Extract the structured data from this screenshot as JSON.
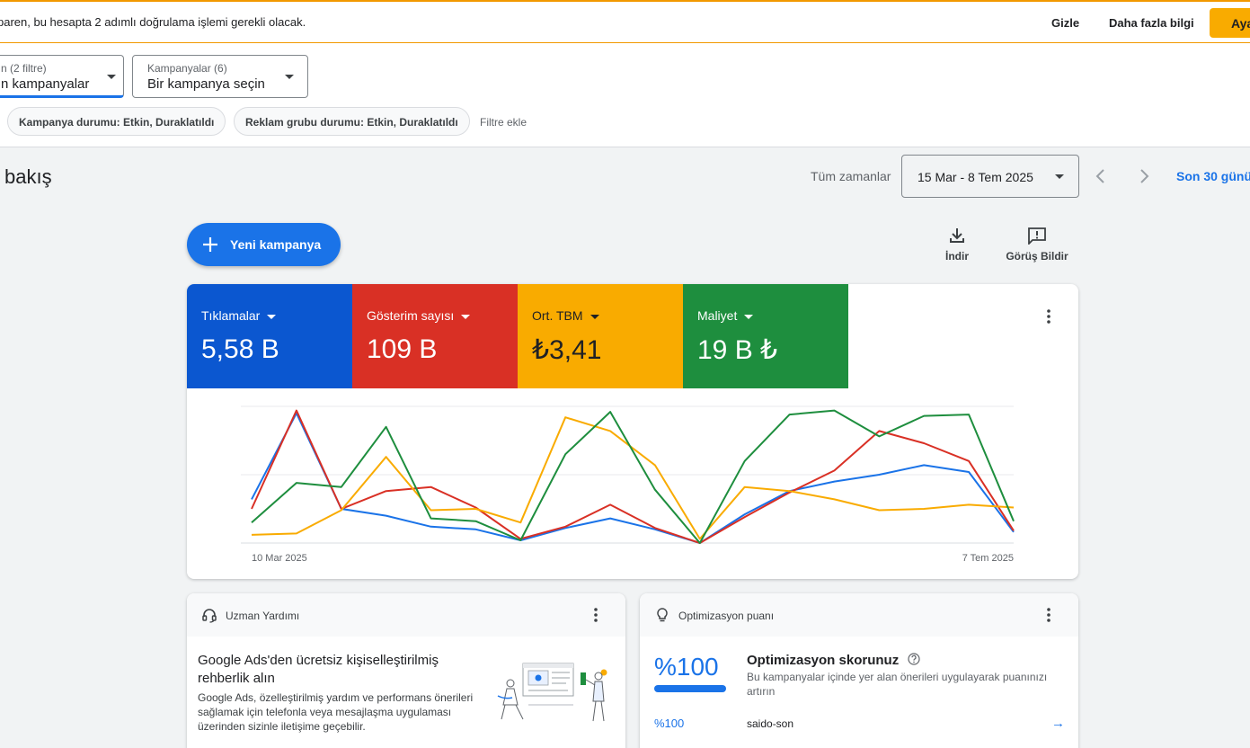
{
  "banner": {
    "text": "paren, bu hesapta 2 adımlı doğrulama işlemi gerekli olacak.",
    "hide_label": "Gizle",
    "more_info_label": "Daha fazla bilgi",
    "cta_label": "Aya"
  },
  "filters": {
    "view_selector": {
      "label": "n (2 filtre)",
      "value": "n kampanyalar"
    },
    "campaign_selector": {
      "label": "Kampanyalar (6)",
      "value": "Bir kampanya seçin"
    },
    "chips": [
      "Kampanya durumu: Etkin, Duraklatıldı",
      "Reklam grubu durumu: Etkin, Duraklatıldı"
    ],
    "add_filter_label": "Filtre ekle"
  },
  "header": {
    "title": "bakış",
    "range_label": "Tüm zamanlar",
    "date_range": "15 Mar - 8 Tem 2025",
    "last30_label": "Son 30 günü"
  },
  "actions": {
    "new_campaign_label": "Yeni kampanya",
    "download_label": "İndir",
    "feedback_label": "Görüş Bildir"
  },
  "metrics": [
    {
      "label": "Tıklamalar",
      "value": "5,58 B",
      "color": "#0b57d0"
    },
    {
      "label": "Gösterim sayısı",
      "value": "109 B",
      "color": "#d93025"
    },
    {
      "label": "Ort. TBM",
      "value": "₺3,41",
      "color": "#f29900"
    },
    {
      "label": "Maliyet",
      "value": "19 B ₺",
      "color": "#1e8e3e"
    }
  ],
  "chart_data": {
    "type": "line",
    "x_start_label": "10 Mar 2025",
    "x_end_label": "7 Tem 2025",
    "grid": true,
    "normalized": true,
    "series": [
      {
        "color": "#1a73e8",
        "values": [
          0.32,
          0.95,
          0.25,
          0.2,
          0.12,
          0.1,
          0.02,
          0.11,
          0.18,
          0.1,
          0.0,
          0.21,
          0.38,
          0.45,
          0.5,
          0.57,
          0.52,
          0.08
        ]
      },
      {
        "color": "#d93025",
        "values": [
          0.25,
          0.97,
          0.25,
          0.38,
          0.41,
          0.26,
          0.03,
          0.12,
          0.28,
          0.11,
          0.0,
          0.19,
          0.37,
          0.53,
          0.82,
          0.73,
          0.6,
          0.09
        ]
      },
      {
        "color": "#f9ab00",
        "values": [
          0.06,
          0.07,
          0.24,
          0.63,
          0.24,
          0.25,
          0.15,
          0.92,
          0.82,
          0.57,
          0.03,
          0.41,
          0.38,
          0.32,
          0.24,
          0.25,
          0.28,
          0.26
        ]
      },
      {
        "color": "#1e8e3e",
        "values": [
          0.15,
          0.44,
          0.41,
          0.85,
          0.18,
          0.16,
          0.02,
          0.65,
          0.96,
          0.39,
          0.0,
          0.6,
          0.94,
          0.97,
          0.78,
          0.93,
          0.94,
          0.16
        ]
      }
    ]
  },
  "expert_help": {
    "title": "Uzman Yardımı",
    "heading": "Google Ads'den ücretsiz kişiselleştirilmiş rehberlik alın",
    "body": "Google Ads, özelleştirilmiş yardım ve performans önerileri sağlamak için telefonla veya mesajlaşma uygulaması üzerinden sizinle iletişime geçebilir."
  },
  "optimization": {
    "title": "Optimizasyon puanı",
    "score": "%100",
    "heading": "Optimizasyon skorunuz",
    "description": "Bu kampanyalar içinde yer alan önerileri uygulayarak puanınızı artırın",
    "row_score": "%100",
    "row_name": "saido-son"
  }
}
